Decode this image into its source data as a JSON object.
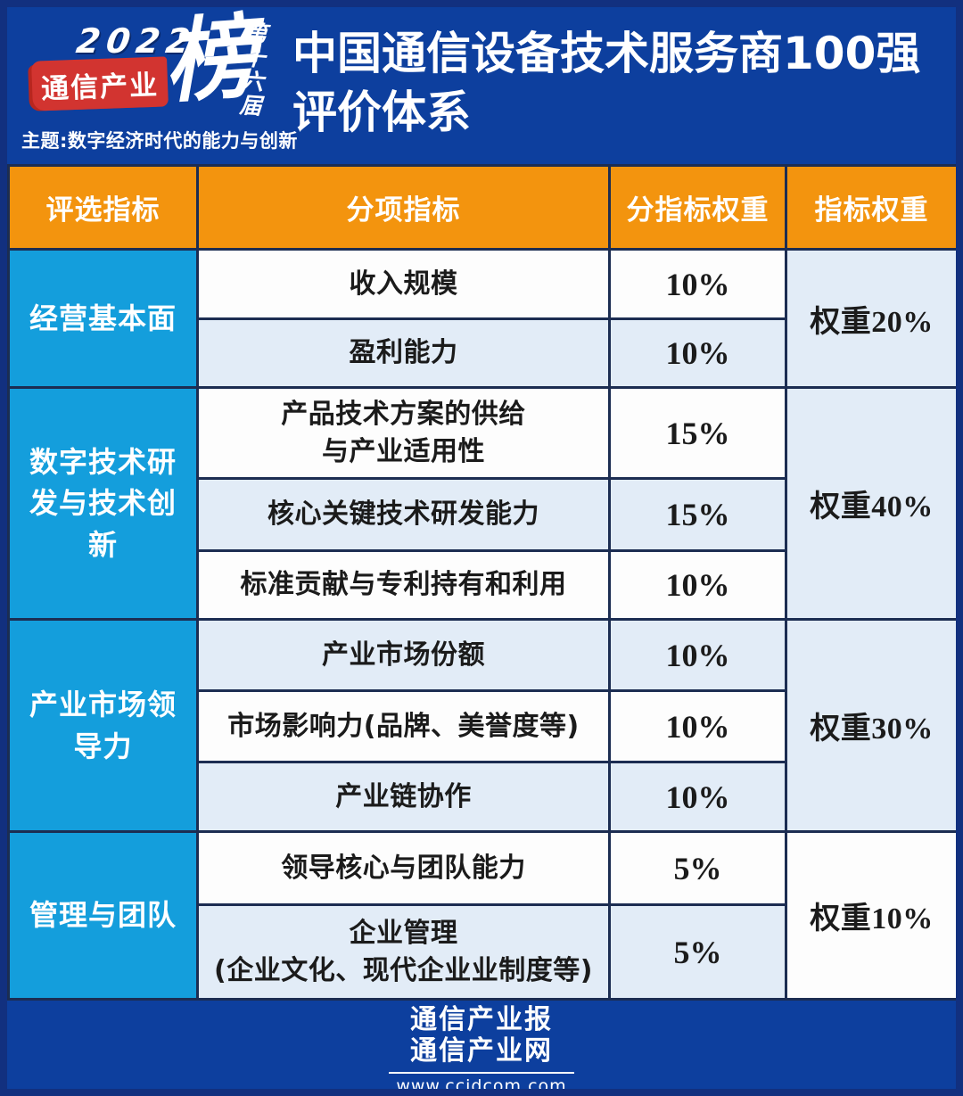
{
  "header": {
    "logo": {
      "year": "2022",
      "brand": "通信产业",
      "stamp": "榜",
      "edition": "第十六届",
      "theme": "主题:数字经济时代的能力与创新"
    },
    "title": "中国通信设备技术服务商100强\n评价体系"
  },
  "table": {
    "columns": [
      "评选指标",
      "分项指标",
      "分指标权重",
      "指标权重"
    ],
    "groups": [
      {
        "label": "经营基本面",
        "weight": "权重20%",
        "rows": [
          {
            "name": "收入规模",
            "pct": "10%"
          },
          {
            "name": "盈利能力",
            "pct": "10%"
          }
        ]
      },
      {
        "label": "数字技术研发与技术创新",
        "weight": "权重40%",
        "rows": [
          {
            "name": "产品技术方案的供给\n与产业适用性",
            "pct": "15%"
          },
          {
            "name": "核心关键技术研发能力",
            "pct": "15%"
          },
          {
            "name": "标准贡献与专利持有和利用",
            "pct": "10%"
          }
        ]
      },
      {
        "label": "产业市场领导力",
        "weight": "权重30%",
        "rows": [
          {
            "name": "产业市场份额",
            "pct": "10%"
          },
          {
            "name": "市场影响力(品牌、美誉度等)",
            "pct": "10%"
          },
          {
            "name": "产业链协作",
            "pct": "10%"
          }
        ]
      },
      {
        "label": "管理与团队",
        "weight": "权重10%",
        "rows": [
          {
            "name": "领导核心与团队能力",
            "pct": "5%"
          },
          {
            "name": "企业管理\n(企业文化、现代企业业制度等)",
            "pct": "5%"
          }
        ]
      }
    ]
  },
  "footer": {
    "line1": "通信产业报",
    "line2": "通信产业网",
    "url": "www.ccidcom.com"
  },
  "colors": {
    "panel_blue": "#0d3f9e",
    "frame_navy": "#12307f",
    "header_orange": "#f3940e",
    "group_cyan": "#149edc",
    "row_light_blue": "#e2ecf7",
    "banner_red": "#d23430",
    "grid_line": "#1c2d52"
  }
}
